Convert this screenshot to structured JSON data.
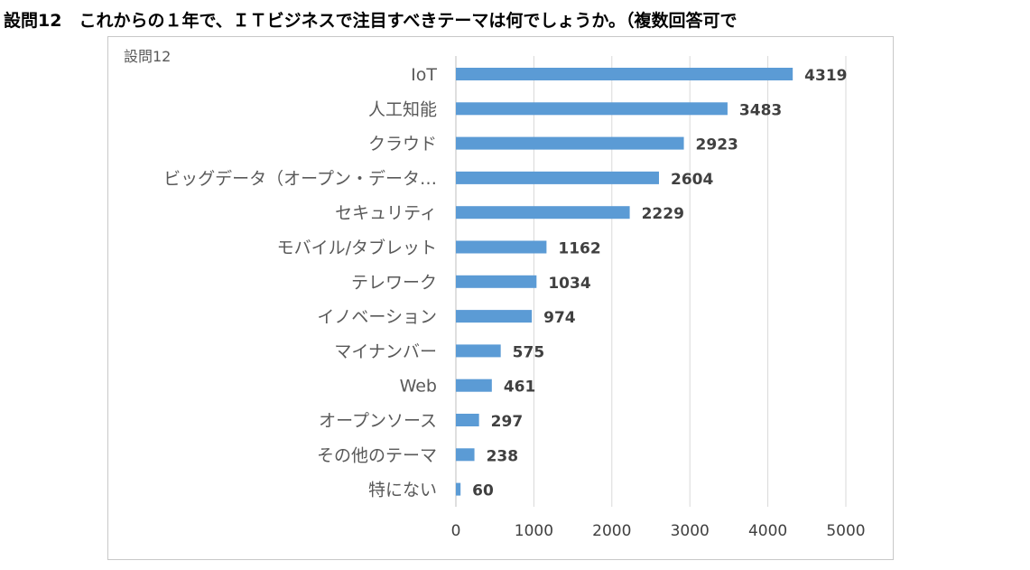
{
  "heading": "設問12　これからの１年で、ＩＴビジネスで注目すべきテーマは何でしょうか。（複数回答可で",
  "chart_data": {
    "type": "bar",
    "orientation": "horizontal",
    "title": "設問12",
    "categories": [
      "IoT",
      "人工知能",
      "クラウド",
      "ビッグデータ（オープン・データ…",
      "セキュリティ",
      "モバイル/タブレット",
      "テレワーク",
      "イノベーション",
      "マイナンバー",
      "Web",
      "オープンソース",
      "その他のテーマ",
      "特にない"
    ],
    "values": [
      4319,
      3483,
      2923,
      2604,
      2229,
      1162,
      1034,
      974,
      575,
      461,
      297,
      238,
      60
    ],
    "xlim": [
      0,
      5000
    ],
    "xticks": [
      0,
      1000,
      2000,
      3000,
      4000,
      5000
    ],
    "grid": true,
    "legend": "none",
    "bar_color": "#5b9bd5"
  }
}
